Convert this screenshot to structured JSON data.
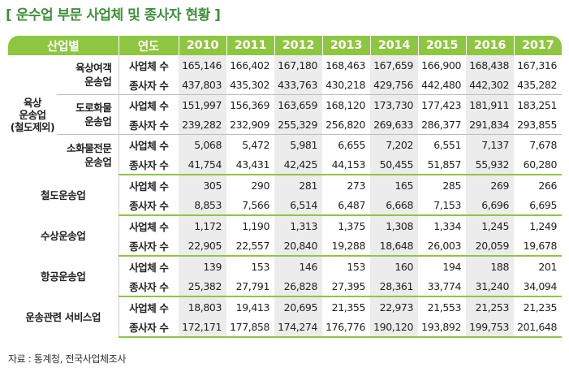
{
  "title": "[ 운수업 부문 사업체 및 종사자 현황 ]",
  "headers": {
    "category": "산업별",
    "metric": "연도",
    "years": [
      "2010",
      "2011",
      "2012",
      "2013",
      "2014",
      "2015",
      "2016",
      "2017"
    ]
  },
  "metrics": {
    "establishments": "사업체 수",
    "employees": "종사자 수"
  },
  "groups": {
    "land": {
      "name_lines": [
        "육상",
        "운송업",
        "(철도제외)"
      ],
      "subs": [
        {
          "name_lines": [
            "육상여객",
            "운송업"
          ],
          "establishments": [
            "165,146",
            "166,402",
            "167,180",
            "168,463",
            "167,659",
            "166,900",
            "168,438",
            "167,316"
          ],
          "employees": [
            "437,803",
            "435,302",
            "433,763",
            "430,218",
            "429,756",
            "442,480",
            "442,302",
            "435,282"
          ]
        },
        {
          "name_lines": [
            "도로화물",
            "운송업"
          ],
          "establishments": [
            "151,997",
            "156,369",
            "163,659",
            "168,120",
            "173,730",
            "177,423",
            "181,911",
            "183,251"
          ],
          "employees": [
            "239,282",
            "232,909",
            "255,329",
            "256,820",
            "269,633",
            "286,377",
            "291,834",
            "293,855"
          ]
        },
        {
          "name_lines": [
            "소화물전문",
            "운송업"
          ],
          "establishments": [
            "5,068",
            "5,472",
            "5,981",
            "6,655",
            "7,202",
            "6,551",
            "7,137",
            "7,678"
          ],
          "employees": [
            "41,754",
            "43,431",
            "42,425",
            "44,153",
            "50,455",
            "51,857",
            "55,932",
            "60,280"
          ]
        }
      ]
    },
    "others": [
      {
        "name": "철도운송업",
        "establishments": [
          "305",
          "290",
          "281",
          "273",
          "165",
          "285",
          "269",
          "266"
        ],
        "employees": [
          "8,853",
          "7,566",
          "6,514",
          "6,487",
          "6,668",
          "7,153",
          "6,696",
          "6,695"
        ]
      },
      {
        "name": "수상운송업",
        "establishments": [
          "1,172",
          "1,190",
          "1,313",
          "1,375",
          "1,308",
          "1,334",
          "1,245",
          "1,249"
        ],
        "employees": [
          "22,905",
          "22,557",
          "20,840",
          "19,288",
          "18,648",
          "26,003",
          "20,059",
          "19,678"
        ]
      },
      {
        "name": "항공운송업",
        "establishments": [
          "139",
          "153",
          "146",
          "153",
          "160",
          "194",
          "188",
          "201"
        ],
        "employees": [
          "25,382",
          "27,791",
          "26,828",
          "27,395",
          "28,361",
          "33,774",
          "31,240",
          "34,094"
        ]
      },
      {
        "name": "운송관련 서비스업",
        "establishments": [
          "18,803",
          "19,413",
          "20,695",
          "21,355",
          "22,973",
          "21,553",
          "21,253",
          "21,235"
        ],
        "employees": [
          "172,171",
          "177,858",
          "174,274",
          "176,776",
          "190,120",
          "193,892",
          "199,753",
          "201,648"
        ]
      }
    ]
  },
  "source": "자료 : 통계청, 전국사업체조사",
  "colors": {
    "header_bg": "#8ec641",
    "title": "#3f8f3a",
    "shade": "#ececec"
  }
}
